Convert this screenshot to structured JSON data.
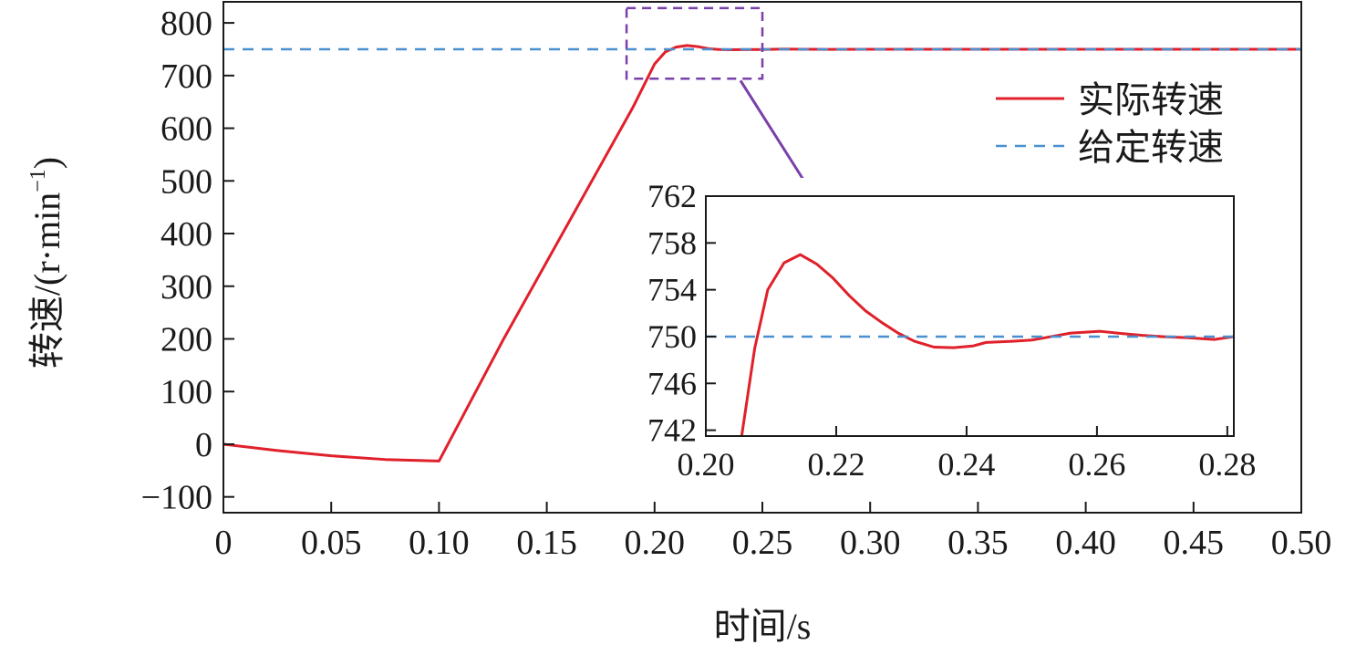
{
  "chart_data": [
    {
      "type": "line",
      "ylabel": "转速/(r·min",
      "ylabel_sup": "−1",
      "ylabel_close": ")",
      "xlabel": "时间/s",
      "xlim": [
        0,
        0.5
      ],
      "ylim": [
        -130,
        840
      ],
      "xticks": [
        0,
        0.05,
        0.1,
        0.15,
        0.2,
        0.25,
        0.3,
        0.35,
        0.4,
        0.45,
        0.5
      ],
      "xtick_labels": [
        "0",
        "0.05",
        "0.10",
        "0.15",
        "0.20",
        "0.25",
        "0.30",
        "0.35",
        "0.40",
        "0.45",
        "0.50"
      ],
      "yticks": [
        -100,
        0,
        100,
        200,
        300,
        400,
        500,
        600,
        700,
        800
      ],
      "ytick_labels": [
        "−100",
        "0",
        "100",
        "200",
        "300",
        "400",
        "500",
        "600",
        "700",
        "800"
      ],
      "legend_position": "top-right",
      "series": [
        {
          "name": "实际转速",
          "color": "#e0202a",
          "style": "solid",
          "x": [
            0,
            0.025,
            0.05,
            0.075,
            0.1,
            0.13,
            0.16,
            0.19,
            0.2,
            0.205,
            0.21,
            0.215,
            0.22,
            0.225,
            0.23,
            0.235,
            0.24,
            0.25,
            0.26,
            0.27,
            0.28,
            0.3,
            0.35,
            0.4,
            0.45,
            0.5
          ],
          "y": [
            0,
            -12,
            -22,
            -29,
            -32,
            200,
            420,
            640,
            722,
            745,
            754,
            757,
            755,
            751,
            749.5,
            749,
            749.2,
            749.6,
            750.4,
            750,
            749.8,
            750,
            750,
            750,
            750,
            750
          ]
        },
        {
          "name": "给定转速",
          "color": "#4a90d0",
          "style": "dashed",
          "x": [
            0,
            0.5
          ],
          "y": [
            750,
            750
          ]
        }
      ],
      "zoom_box": {
        "x": [
          0.187,
          0.25
        ],
        "y": [
          694,
          828
        ],
        "color": "#7a3fa8"
      }
    },
    {
      "type": "line",
      "role": "inset",
      "xlim": [
        0.2,
        0.281
      ],
      "ylim": [
        741.5,
        762
      ],
      "xticks": [
        0.2,
        0.22,
        0.24,
        0.26,
        0.28
      ],
      "xtick_labels": [
        "0.20",
        "0.22",
        "0.24",
        "0.26",
        "0.28"
      ],
      "yticks": [
        742,
        746,
        750,
        754,
        758,
        762
      ],
      "ytick_labels": [
        "742",
        "746",
        "750",
        "754",
        "758",
        "762"
      ],
      "series": [
        {
          "name": "实际转速",
          "color": "#e0202a",
          "style": "solid",
          "x": [
            0.2055,
            0.2075,
            0.2095,
            0.212,
            0.2145,
            0.217,
            0.2195,
            0.222,
            0.2245,
            0.227,
            0.2295,
            0.232,
            0.235,
            0.238,
            0.241,
            0.243,
            0.247,
            0.25,
            0.253,
            0.256,
            0.2605,
            0.264,
            0.267,
            0.27,
            0.274,
            0.278,
            0.281
          ],
          "y": [
            741.5,
            749,
            754,
            756.3,
            757,
            756.2,
            755,
            753.5,
            752.2,
            751.2,
            750.3,
            749.6,
            749.1,
            749.05,
            749.2,
            749.5,
            749.6,
            749.7,
            750.0,
            750.3,
            750.45,
            750.25,
            750.1,
            750.0,
            749.9,
            749.75,
            750.0
          ]
        },
        {
          "name": "给定转速",
          "color": "#4a90d0",
          "style": "dashed",
          "x": [
            0.2,
            0.281
          ],
          "y": [
            750,
            750
          ]
        }
      ]
    }
  ]
}
